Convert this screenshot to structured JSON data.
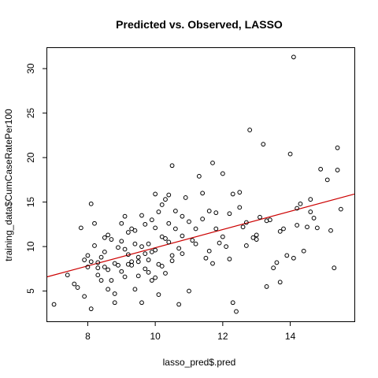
{
  "chart_data": {
    "type": "scatter",
    "title": "Predicted vs. Observed, LASSO",
    "xlabel": "lasso_pred$.pred",
    "ylabel": "training_data$CumCaseRatePer100",
    "xlim": [
      6.8,
      15.9
    ],
    "ylim": [
      1.6,
      32.4
    ],
    "xticks": [
      8,
      10,
      12,
      14
    ],
    "yticks": [
      5,
      10,
      15,
      20,
      25,
      30
    ],
    "grid": false,
    "fit_line": {
      "x": [
        6.8,
        15.9
      ],
      "y": [
        6.6,
        15.9
      ],
      "color": "#cc0000"
    },
    "series": [
      {
        "marker": "open-circle",
        "points": [
          [
            7.0,
            3.5
          ],
          [
            7.4,
            6.8
          ],
          [
            7.7,
            5.4
          ],
          [
            7.8,
            12.1
          ],
          [
            7.9,
            8.5
          ],
          [
            8.0,
            7.7
          ],
          [
            8.0,
            9.0
          ],
          [
            8.1,
            14.8
          ],
          [
            8.1,
            3.0
          ],
          [
            8.2,
            10.1
          ],
          [
            8.2,
            12.6
          ],
          [
            8.3,
            8.2
          ],
          [
            8.3,
            7.6
          ],
          [
            8.4,
            6.2
          ],
          [
            8.4,
            8.8
          ],
          [
            8.5,
            9.4
          ],
          [
            8.5,
            11.0
          ],
          [
            8.6,
            7.4
          ],
          [
            8.6,
            5.2
          ],
          [
            8.7,
            10.8
          ],
          [
            8.7,
            6.2
          ],
          [
            8.8,
            3.7
          ],
          [
            8.8,
            4.7
          ],
          [
            8.9,
            7.9
          ],
          [
            8.9,
            9.9
          ],
          [
            9.0,
            7.2
          ],
          [
            9.0,
            12.6
          ],
          [
            9.1,
            13.4
          ],
          [
            9.1,
            9.7
          ],
          [
            9.2,
            8.0
          ],
          [
            9.2,
            11.6
          ],
          [
            9.3,
            8.3
          ],
          [
            9.3,
            12.0
          ],
          [
            9.4,
            5.2
          ],
          [
            9.4,
            10.3
          ],
          [
            9.5,
            8.8
          ],
          [
            9.5,
            6.7
          ],
          [
            9.6,
            13.5
          ],
          [
            9.6,
            3.7
          ],
          [
            9.7,
            7.5
          ],
          [
            9.7,
            9.2
          ],
          [
            9.8,
            10.3
          ],
          [
            9.8,
            8.5
          ],
          [
            9.9,
            6.2
          ],
          [
            9.9,
            13.0
          ],
          [
            10.0,
            12.1
          ],
          [
            10.0,
            9.6
          ],
          [
            10.0,
            15.9
          ],
          [
            10.1,
            4.6
          ],
          [
            10.1,
            8.0
          ],
          [
            10.2,
            14.7
          ],
          [
            10.2,
            11.1
          ],
          [
            10.3,
            7.0
          ],
          [
            10.3,
            15.3
          ],
          [
            10.4,
            10.5
          ],
          [
            10.4,
            15.8
          ],
          [
            10.5,
            9.0
          ],
          [
            10.5,
            19.1
          ],
          [
            10.6,
            12.0
          ],
          [
            10.7,
            3.5
          ],
          [
            10.7,
            9.8
          ],
          [
            10.8,
            13.4
          ],
          [
            10.8,
            11.2
          ],
          [
            10.9,
            15.5
          ],
          [
            11.0,
            5.0
          ],
          [
            11.1,
            10.7
          ],
          [
            11.2,
            12.0
          ],
          [
            11.3,
            17.9
          ],
          [
            11.4,
            13.1
          ],
          [
            11.5,
            8.7
          ],
          [
            11.6,
            14.0
          ],
          [
            11.7,
            8.1
          ],
          [
            11.7,
            19.4
          ],
          [
            11.8,
            12.0
          ],
          [
            11.9,
            10.4
          ],
          [
            12.0,
            18.2
          ],
          [
            12.1,
            10.0
          ],
          [
            12.2,
            13.7
          ],
          [
            12.3,
            3.7
          ],
          [
            12.3,
            15.9
          ],
          [
            12.4,
            2.7
          ],
          [
            12.5,
            16.1
          ],
          [
            12.6,
            12.2
          ],
          [
            12.7,
            10.1
          ],
          [
            12.8,
            23.1
          ],
          [
            12.9,
            11.0
          ],
          [
            13.0,
            11.3
          ],
          [
            13.1,
            13.3
          ],
          [
            13.2,
            21.5
          ],
          [
            13.3,
            5.5
          ],
          [
            13.4,
            13.0
          ],
          [
            13.5,
            7.6
          ],
          [
            13.6,
            8.2
          ],
          [
            13.7,
            6.0
          ],
          [
            13.8,
            12.0
          ],
          [
            13.9,
            9.0
          ],
          [
            14.0,
            20.4
          ],
          [
            14.1,
            8.7
          ],
          [
            14.1,
            31.3
          ],
          [
            14.2,
            14.3
          ],
          [
            14.3,
            14.8
          ],
          [
            14.4,
            9.5
          ],
          [
            14.5,
            12.2
          ],
          [
            14.6,
            15.3
          ],
          [
            14.7,
            13.2
          ],
          [
            14.8,
            12.1
          ],
          [
            14.9,
            18.7
          ],
          [
            15.1,
            17.5
          ],
          [
            15.2,
            11.8
          ],
          [
            15.3,
            7.6
          ],
          [
            15.4,
            21.1
          ],
          [
            15.4,
            18.6
          ],
          [
            15.5,
            14.2
          ],
          [
            7.6,
            5.8
          ],
          [
            7.9,
            4.4
          ],
          [
            8.1,
            8.3
          ],
          [
            8.3,
            6.8
          ],
          [
            8.5,
            7.7
          ],
          [
            8.6,
            11.3
          ],
          [
            8.8,
            8.1
          ],
          [
            9.0,
            10.6
          ],
          [
            9.1,
            6.6
          ],
          [
            9.2,
            9.1
          ],
          [
            9.3,
            7.9
          ],
          [
            9.4,
            11.8
          ],
          [
            9.5,
            8.3
          ],
          [
            9.6,
            10.0
          ],
          [
            9.7,
            12.5
          ],
          [
            9.8,
            7.1
          ],
          [
            9.9,
            9.4
          ],
          [
            10.0,
            6.5
          ],
          [
            10.1,
            13.9
          ],
          [
            10.2,
            7.8
          ],
          [
            10.3,
            10.9
          ],
          [
            10.4,
            12.6
          ],
          [
            10.5,
            8.4
          ],
          [
            10.6,
            14.0
          ],
          [
            10.8,
            9.2
          ],
          [
            11.0,
            12.8
          ],
          [
            11.2,
            10.3
          ],
          [
            11.4,
            16.0
          ],
          [
            11.6,
            9.5
          ],
          [
            11.8,
            13.8
          ],
          [
            12.0,
            11.1
          ],
          [
            12.2,
            8.6
          ],
          [
            12.5,
            14.4
          ],
          [
            12.7,
            12.7
          ],
          [
            13.0,
            10.8
          ],
          [
            13.3,
            12.9
          ],
          [
            13.7,
            11.7
          ],
          [
            14.2,
            12.4
          ],
          [
            14.6,
            13.9
          ]
        ]
      }
    ]
  }
}
